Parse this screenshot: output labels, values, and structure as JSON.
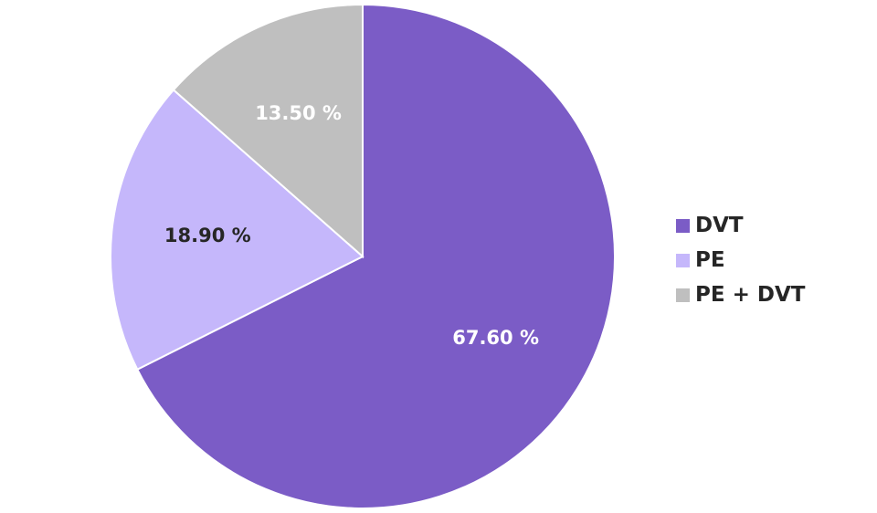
{
  "chart_data": {
    "type": "pie",
    "categories": [
      "DVT",
      "PE",
      "PE + DVT"
    ],
    "values": [
      67.6,
      18.9,
      13.5
    ],
    "data_labels": [
      "67.60 %",
      "18.90 %",
      "13.50 %"
    ],
    "colors": [
      "#7b5cc6",
      "#c5b7fb",
      "#bfbfbf"
    ],
    "label_colors": [
      "#ffffff",
      "#262626",
      "#ffffff"
    ],
    "start_angle_deg": 0,
    "direction": "clockwise",
    "legend_position": "right",
    "title": ""
  }
}
